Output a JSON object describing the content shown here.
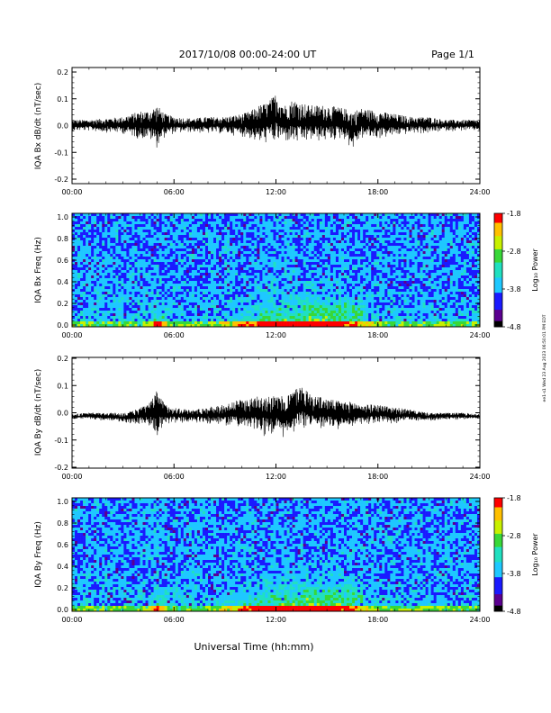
{
  "header": {
    "title": "2017/10/08  00:00-24:00 UT",
    "page": "Page 1/1"
  },
  "footer": {
    "xlabel": "Universal Time (hh:mm)",
    "side_stamp": "ee1-s1 Wed 23 Aug 2023 06:50:01 PM EDT"
  },
  "chart_data": [
    {
      "type": "line",
      "ylabel": "IQA Bx dB/dt (nT/sec)",
      "ylim": [
        -0.2,
        0.2
      ],
      "yticks": [
        "0.2",
        "0.1",
        "0.0",
        "-0.1",
        "-0.2"
      ],
      "xlim": [
        "00:00",
        "24:00"
      ],
      "xticks": [
        "00:00",
        "06:00",
        "12:00",
        "18:00",
        "24:00"
      ],
      "series": [
        {
          "x_hours": [
            0,
            1,
            2,
            3,
            3.5,
            4,
            4.5,
            5,
            5.5,
            6,
            7,
            8,
            9,
            10,
            10.5,
            11,
            11.5,
            12,
            12.5,
            13,
            13.5,
            14,
            15,
            16,
            16.5,
            17,
            18,
            19,
            20,
            21,
            22,
            23,
            24
          ],
          "envelope_max": [
            0.02,
            0.02,
            0.025,
            0.03,
            0.04,
            0.05,
            0.05,
            0.07,
            0.04,
            0.03,
            0.025,
            0.03,
            0.03,
            0.04,
            0.05,
            0.07,
            0.08,
            0.11,
            0.07,
            0.09,
            0.08,
            0.07,
            0.07,
            0.06,
            0.05,
            0.06,
            0.05,
            0.04,
            0.03,
            0.03,
            0.02,
            0.02,
            0.02
          ],
          "envelope_min": [
            -0.02,
            -0.02,
            -0.025,
            -0.03,
            -0.04,
            -0.05,
            -0.05,
            -0.08,
            -0.04,
            -0.03,
            -0.025,
            -0.03,
            -0.03,
            -0.04,
            -0.05,
            -0.07,
            -0.065,
            -0.07,
            -0.06,
            -0.07,
            -0.07,
            -0.06,
            -0.06,
            -0.05,
            -0.09,
            -0.05,
            -0.05,
            -0.04,
            -0.03,
            -0.03,
            -0.02,
            -0.02,
            -0.02
          ]
        }
      ]
    },
    {
      "type": "heatmap",
      "ylabel": "IQA Bx Freq (Hz)",
      "ylim": [
        0.0,
        1.0
      ],
      "yticks": [
        "1.0",
        "0.8",
        "0.6",
        "0.4",
        "0.2",
        "0.0"
      ],
      "xticks": [
        "00:00",
        "06:00",
        "12:00",
        "18:00",
        "24:00"
      ],
      "colorbar": {
        "label": "Log₁₀ Power",
        "ticks": [
          "-1.8",
          "-2.8",
          "-3.8",
          "-4.8"
        ],
        "range": [
          -4.8,
          -1.8
        ]
      }
    },
    {
      "type": "line",
      "ylabel": "IQA By dB/dt (nT/sec)",
      "ylim": [
        -0.2,
        0.2
      ],
      "yticks": [
        "0.2",
        "0.1",
        "0.0",
        "-0.1",
        "-0.2"
      ],
      "xticks": [
        "00:00",
        "06:00",
        "12:00",
        "18:00",
        "24:00"
      ],
      "series": [
        {
          "x_hours": [
            0,
            1,
            2,
            3,
            3.5,
            4,
            4.5,
            5,
            5.5,
            6,
            7,
            8,
            9,
            10,
            10.5,
            11,
            11.5,
            12,
            12.5,
            13,
            13.5,
            14,
            15,
            16,
            16.5,
            17,
            18,
            19,
            20,
            21,
            22,
            23,
            24
          ],
          "envelope_max": [
            -0.005,
            0.0,
            0.0,
            0.0,
            0.005,
            0.02,
            0.03,
            0.08,
            0.03,
            0.02,
            0.01,
            0.02,
            0.03,
            0.05,
            0.05,
            0.07,
            0.065,
            0.06,
            0.06,
            0.08,
            0.1,
            0.07,
            0.05,
            0.04,
            0.04,
            0.03,
            0.03,
            0.02,
            0.01,
            0.0,
            0.0,
            0.0,
            -0.005
          ],
          "envelope_min": [
            -0.025,
            -0.025,
            -0.03,
            -0.035,
            -0.04,
            -0.045,
            -0.05,
            -0.09,
            -0.05,
            -0.04,
            -0.035,
            -0.04,
            -0.05,
            -0.06,
            -0.07,
            -0.08,
            -0.09,
            -0.08,
            -0.11,
            -0.08,
            -0.07,
            -0.07,
            -0.06,
            -0.06,
            -0.05,
            -0.05,
            -0.04,
            -0.04,
            -0.03,
            -0.03,
            -0.025,
            -0.025,
            -0.025
          ]
        }
      ]
    },
    {
      "type": "heatmap",
      "ylabel": "IQA By Freq (Hz)",
      "ylim": [
        0.0,
        1.0
      ],
      "yticks": [
        "1.0",
        "0.8",
        "0.6",
        "0.4",
        "0.2",
        "0.0"
      ],
      "xticks": [
        "00:00",
        "06:00",
        "12:00",
        "18:00",
        "24:00"
      ],
      "colorbar": {
        "label": "Log₁₀ Power",
        "ticks": [
          "-1.8",
          "-2.8",
          "-3.8",
          "-4.8"
        ],
        "range": [
          -4.8,
          -1.8
        ]
      }
    }
  ]
}
